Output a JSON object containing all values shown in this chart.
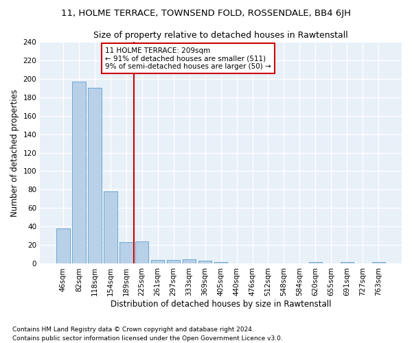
{
  "title_line1": "11, HOLME TERRACE, TOWNSEND FOLD, ROSSENDALE, BB4 6JH",
  "title_line2": "Size of property relative to detached houses in Rawtenstall",
  "xlabel": "Distribution of detached houses by size in Rawtenstall",
  "ylabel": "Number of detached properties",
  "bar_color": "#b8d0e8",
  "bar_edge_color": "#6fa8d0",
  "background_color": "#e8f0f8",
  "grid_color": "#ffffff",
  "categories": [
    "46sqm",
    "82sqm",
    "118sqm",
    "154sqm",
    "189sqm",
    "225sqm",
    "261sqm",
    "297sqm",
    "333sqm",
    "369sqm",
    "405sqm",
    "440sqm",
    "476sqm",
    "512sqm",
    "548sqm",
    "584sqm",
    "620sqm",
    "655sqm",
    "691sqm",
    "727sqm",
    "763sqm"
  ],
  "values": [
    38,
    197,
    190,
    78,
    23,
    24,
    4,
    4,
    5,
    3,
    2,
    0,
    0,
    0,
    0,
    0,
    2,
    0,
    2,
    0,
    2
  ],
  "vline_x": 4.5,
  "vline_color": "#cc0000",
  "annotation_text": "11 HOLME TERRACE: 209sqm\n← 91% of detached houses are smaller (511)\n9% of semi-detached houses are larger (50) →",
  "annotation_box_color": "#cc0000",
  "ylim": [
    0,
    240
  ],
  "yticks": [
    0,
    20,
    40,
    60,
    80,
    100,
    120,
    140,
    160,
    180,
    200,
    220,
    240
  ],
  "footnote": "Contains HM Land Registry data © Crown copyright and database right 2024.\nContains public sector information licensed under the Open Government Licence v3.0.",
  "title_fontsize": 9.5,
  "subtitle_fontsize": 9,
  "axis_label_fontsize": 8.5,
  "tick_fontsize": 7.5,
  "annotation_fontsize": 7.5,
  "footnote_fontsize": 6.5
}
